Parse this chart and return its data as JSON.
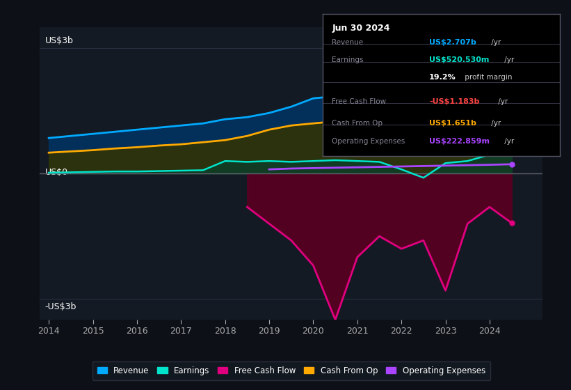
{
  "bg_color": "#0d1117",
  "plot_bg_color": "#141a23",
  "grid_color": "#2a3040",
  "ylabel_top": "US$3b",
  "ylabel_bottom": "-US$3b",
  "ylabel_zero": "US$0",
  "ylim": [
    -3.5,
    3.5
  ],
  "years": [
    2014,
    2014.5,
    2015,
    2015.5,
    2016,
    2016.5,
    2017,
    2017.5,
    2018,
    2018.5,
    2019,
    2019.5,
    2020,
    2020.5,
    2021,
    2021.5,
    2022,
    2022.5,
    2023,
    2023.5,
    2024,
    2024.5
  ],
  "revenue": [
    0.85,
    0.9,
    0.95,
    1.0,
    1.05,
    1.1,
    1.15,
    1.2,
    1.3,
    1.35,
    1.45,
    1.6,
    1.8,
    1.85,
    2.05,
    2.1,
    2.0,
    2.1,
    2.2,
    2.4,
    2.6,
    2.707
  ],
  "cash_from_op": [
    0.5,
    0.53,
    0.56,
    0.6,
    0.63,
    0.67,
    0.7,
    0.75,
    0.8,
    0.9,
    1.05,
    1.15,
    1.2,
    1.25,
    1.35,
    1.4,
    1.38,
    1.42,
    1.5,
    1.55,
    1.6,
    1.651
  ],
  "earnings": [
    0.02,
    0.03,
    0.04,
    0.05,
    0.05,
    0.06,
    0.07,
    0.08,
    0.3,
    0.28,
    0.3,
    0.28,
    0.3,
    0.32,
    0.3,
    0.28,
    0.1,
    -0.1,
    0.25,
    0.3,
    0.45,
    0.521
  ],
  "free_cash_flow_x": [
    2018.5,
    2019,
    2019.5,
    2020,
    2020.5,
    2021,
    2021.5,
    2022,
    2022.5,
    2023,
    2023.5,
    2024,
    2024.5
  ],
  "free_cash_flow": [
    -0.8,
    -1.2,
    -1.6,
    -2.2,
    -3.5,
    -2.0,
    -1.5,
    -1.8,
    -1.6,
    -2.8,
    -1.2,
    -0.8,
    -1.183
  ],
  "operating_expenses_x": [
    2019,
    2019.5,
    2020,
    2020.5,
    2021,
    2021.5,
    2022,
    2022.5,
    2023,
    2023.5,
    2024,
    2024.5
  ],
  "operating_expenses": [
    0.1,
    0.12,
    0.13,
    0.14,
    0.15,
    0.16,
    0.17,
    0.18,
    0.19,
    0.2,
    0.21,
    0.223
  ],
  "revenue_color": "#00aaff",
  "revenue_fill_color": "#003366",
  "earnings_color": "#00e5cc",
  "earnings_fill_color": "#004433",
  "cash_from_op_color": "#ffaa00",
  "cash_from_op_fill_color": "#333300",
  "free_cash_flow_color": "#e0007f",
  "free_cash_flow_fill_color": "#5a0020",
  "operating_expenses_color": "#aa44ff",
  "zero_line_color": "#606070",
  "xticks": [
    2014,
    2015,
    2016,
    2017,
    2018,
    2019,
    2020,
    2021,
    2022,
    2023,
    2024
  ],
  "legend_labels": [
    "Revenue",
    "Earnings",
    "Free Cash Flow",
    "Cash From Op",
    "Operating Expenses"
  ],
  "legend_colors": [
    "#00aaff",
    "#00e5cc",
    "#e0007f",
    "#ffaa00",
    "#aa44ff"
  ],
  "info_header": "Jun 30 2024",
  "info_rows": [
    {
      "label": "Revenue",
      "value": "US$2.707b",
      "val_color": "#00aaff",
      "suffix": " /yr"
    },
    {
      "label": "Earnings",
      "value": "US$520.530m",
      "val_color": "#00e5cc",
      "suffix": " /yr"
    },
    {
      "label": "",
      "value": "19.2%",
      "val_color": "#ffffff",
      "suffix": " profit margin"
    },
    {
      "label": "Free Cash Flow",
      "value": "-US$1.183b",
      "val_color": "#ff4444",
      "suffix": " /yr"
    },
    {
      "label": "Cash From Op",
      "value": "US$1.651b",
      "val_color": "#ffaa00",
      "suffix": " /yr"
    },
    {
      "label": "Operating Expenses",
      "value": "US$222.859m",
      "val_color": "#aa44ff",
      "suffix": " /yr"
    }
  ]
}
